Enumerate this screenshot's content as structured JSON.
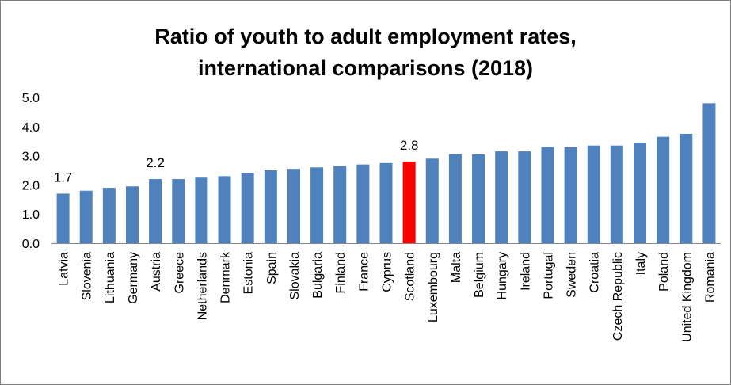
{
  "chart_data": {
    "type": "bar",
    "title_lines": [
      "Ratio of youth to adult employment rates,",
      "international comparisons (2018)"
    ],
    "categories": [
      "Latvia",
      "Slovenia",
      "Lithuania",
      "Germany",
      "Austria",
      "Greece",
      "Netherlands",
      "Denmark",
      "Estonia",
      "Spain",
      "Slovakia",
      "Bulgaria",
      "Finland",
      "France",
      "Cyprus",
      "Scotland",
      "Luxembourg",
      "Malta",
      "Belgium",
      "Hungary",
      "Ireland",
      "Portugal",
      "Sweden",
      "Croatia",
      "Czech Republic",
      "Italy",
      "Poland",
      "United Kingdom",
      "Romania"
    ],
    "values": [
      1.7,
      1.8,
      1.9,
      1.95,
      2.2,
      2.2,
      2.25,
      2.3,
      2.4,
      2.5,
      2.55,
      2.6,
      2.65,
      2.7,
      2.75,
      2.8,
      2.9,
      3.05,
      3.05,
      3.15,
      3.15,
      3.3,
      3.3,
      3.35,
      3.35,
      3.45,
      3.65,
      3.75,
      4.8
    ],
    "data_labels": [
      {
        "category": "Latvia",
        "text": "1.7"
      },
      {
        "category": "Austria",
        "text": "2.2"
      },
      {
        "category": "Scotland",
        "text": "2.8"
      }
    ],
    "highlight": {
      "category": "Scotland",
      "color": "#ff0000"
    },
    "bar_color": "#4f81bd",
    "ylim": [
      0,
      5
    ],
    "yticks": [
      "0.0",
      "1.0",
      "2.0",
      "3.0",
      "4.0",
      "5.0"
    ],
    "grid": false,
    "legend": "none"
  }
}
